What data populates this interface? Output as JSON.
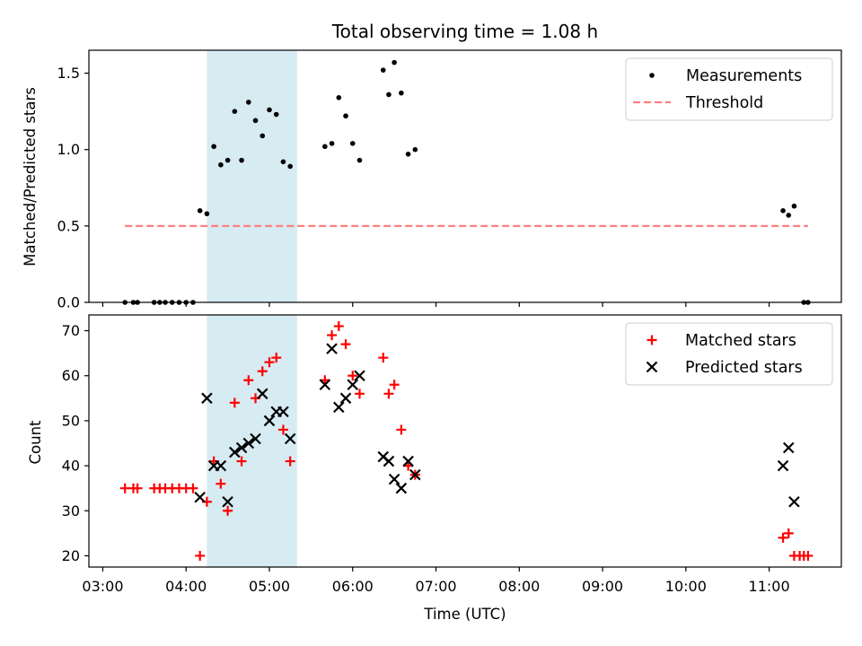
{
  "chart_data": {
    "type": "scatter",
    "title": "Total observing time = 1.08 h",
    "xlabel": "Time (UTC)",
    "x_tick_labels": [
      "03:00",
      "04:00",
      "05:00",
      "06:00",
      "07:00",
      "08:00",
      "09:00",
      "10:00",
      "11:00"
    ],
    "x_ticks": [
      "03:00",
      "04:00",
      "05:00",
      "06:00",
      "07:00",
      "08:00",
      "09:00",
      "10:00",
      "11:00"
    ],
    "xlim": [
      "02:50",
      "11:52"
    ],
    "shaded_span": {
      "start": "04:15",
      "end": "05:20",
      "color": "#add8e6"
    },
    "panels": [
      {
        "ylabel": "Matched/Predicted stars",
        "ylim": [
          0,
          1.65
        ],
        "y_ticks": [
          0.0,
          0.5,
          1.0,
          1.5
        ],
        "y_tick_labels": [
          "0.0",
          "0.5",
          "1.0",
          "1.5"
        ],
        "legend_position": "upper right",
        "series": [
          {
            "name": "Measurements",
            "marker": "dot",
            "color": "#000000",
            "points": [
              [
                "03:16",
                0.0
              ],
              [
                "03:22",
                0.0
              ],
              [
                "03:25",
                0.0
              ],
              [
                "03:37",
                0.0
              ],
              [
                "03:41",
                0.0
              ],
              [
                "03:45",
                0.0
              ],
              [
                "03:50",
                0.0
              ],
              [
                "03:55",
                0.0
              ],
              [
                "04:00",
                0.0
              ],
              [
                "04:05",
                0.0
              ],
              [
                "04:10",
                0.6
              ],
              [
                "04:15",
                0.58
              ],
              [
                "04:20",
                1.02
              ],
              [
                "04:25",
                0.9
              ],
              [
                "04:30",
                0.93
              ],
              [
                "04:35",
                1.25
              ],
              [
                "04:40",
                0.93
              ],
              [
                "04:45",
                1.31
              ],
              [
                "04:50",
                1.19
              ],
              [
                "04:55",
                1.09
              ],
              [
                "05:00",
                1.26
              ],
              [
                "05:05",
                1.23
              ],
              [
                "05:10",
                0.92
              ],
              [
                "05:15",
                0.89
              ],
              [
                "05:40",
                1.02
              ],
              [
                "05:45",
                1.04
              ],
              [
                "05:50",
                1.34
              ],
              [
                "05:55",
                1.22
              ],
              [
                "06:00",
                1.04
              ],
              [
                "06:05",
                0.93
              ],
              [
                "06:22",
                1.52
              ],
              [
                "06:26",
                1.36
              ],
              [
                "06:30",
                1.57
              ],
              [
                "06:35",
                1.37
              ],
              [
                "06:40",
                0.97
              ],
              [
                "06:45",
                1.0
              ],
              [
                "11:10",
                0.6
              ],
              [
                "11:14",
                0.57
              ],
              [
                "11:18",
                0.63
              ],
              [
                "11:25",
                0.0
              ],
              [
                "11:28",
                0.0
              ]
            ]
          },
          {
            "name": "Threshold",
            "marker": "dashed-line",
            "color": "#ff7f7f",
            "points": [
              [
                "03:16",
                0.5
              ],
              [
                "11:28",
                0.5
              ]
            ]
          }
        ]
      },
      {
        "ylabel": "Count",
        "ylim": [
          17.5,
          73.5
        ],
        "y_ticks": [
          20,
          30,
          40,
          50,
          60,
          70
        ],
        "y_tick_labels": [
          "20",
          "30",
          "40",
          "50",
          "60",
          "70"
        ],
        "legend_position": "upper right",
        "series": [
          {
            "name": "Matched stars",
            "marker": "plus",
            "color": "#ff0000",
            "points": [
              [
                "03:16",
                35
              ],
              [
                "03:22",
                35
              ],
              [
                "03:25",
                35
              ],
              [
                "03:37",
                35
              ],
              [
                "03:41",
                35
              ],
              [
                "03:45",
                35
              ],
              [
                "03:50",
                35
              ],
              [
                "03:55",
                35
              ],
              [
                "04:00",
                35
              ],
              [
                "04:05",
                35
              ],
              [
                "04:10",
                20
              ],
              [
                "04:15",
                32
              ],
              [
                "04:20",
                41
              ],
              [
                "04:25",
                36
              ],
              [
                "04:30",
                30
              ],
              [
                "04:35",
                54
              ],
              [
                "04:40",
                41
              ],
              [
                "04:45",
                59
              ],
              [
                "04:50",
                55
              ],
              [
                "04:55",
                61
              ],
              [
                "05:00",
                63
              ],
              [
                "05:05",
                64
              ],
              [
                "05:10",
                48
              ],
              [
                "05:15",
                41
              ],
              [
                "05:40",
                59
              ],
              [
                "05:45",
                69
              ],
              [
                "05:50",
                71
              ],
              [
                "05:55",
                67
              ],
              [
                "06:00",
                60
              ],
              [
                "06:05",
                56
              ],
              [
                "06:22",
                64
              ],
              [
                "06:26",
                56
              ],
              [
                "06:30",
                58
              ],
              [
                "06:35",
                48
              ],
              [
                "06:40",
                40
              ],
              [
                "06:45",
                38
              ],
              [
                "11:10",
                24
              ],
              [
                "11:14",
                25
              ],
              [
                "11:18",
                20
              ],
              [
                "11:22",
                20
              ],
              [
                "11:25",
                20
              ],
              [
                "11:28",
                20
              ]
            ]
          },
          {
            "name": "Predicted stars",
            "marker": "x",
            "color": "#000000",
            "points": [
              [
                "04:10",
                33
              ],
              [
                "04:15",
                55
              ],
              [
                "04:20",
                40
              ],
              [
                "04:25",
                40
              ],
              [
                "04:30",
                32
              ],
              [
                "04:35",
                43
              ],
              [
                "04:40",
                44
              ],
              [
                "04:45",
                45
              ],
              [
                "04:50",
                46
              ],
              [
                "04:55",
                56
              ],
              [
                "05:00",
                50
              ],
              [
                "05:05",
                52
              ],
              [
                "05:10",
                52
              ],
              [
                "05:15",
                46
              ],
              [
                "05:40",
                58
              ],
              [
                "05:45",
                66
              ],
              [
                "05:50",
                53
              ],
              [
                "05:55",
                55
              ],
              [
                "06:00",
                58
              ],
              [
                "06:05",
                60
              ],
              [
                "06:22",
                42
              ],
              [
                "06:26",
                41
              ],
              [
                "06:30",
                37
              ],
              [
                "06:35",
                35
              ],
              [
                "06:40",
                41
              ],
              [
                "06:45",
                38
              ],
              [
                "11:10",
                40
              ],
              [
                "11:14",
                44
              ],
              [
                "11:18",
                32
              ]
            ]
          }
        ]
      }
    ]
  }
}
